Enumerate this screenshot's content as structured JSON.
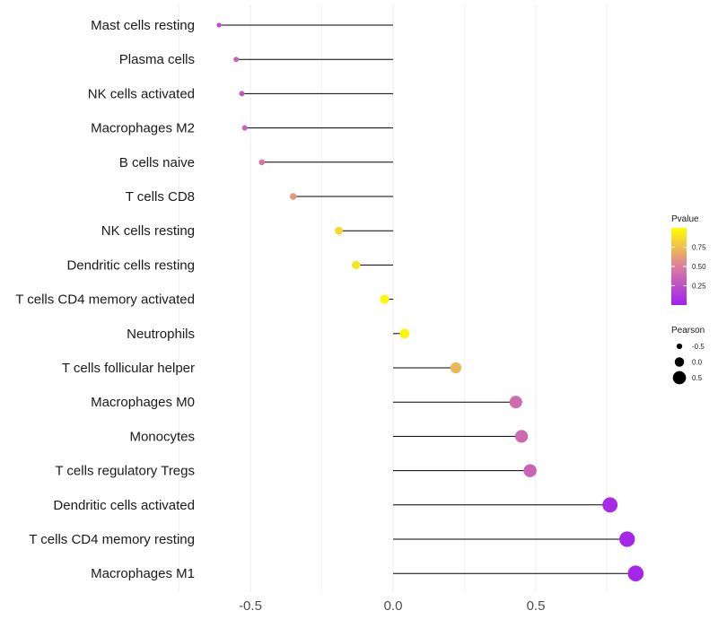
{
  "chart_data": {
    "type": "lollipop",
    "title": "",
    "xlabel": "",
    "ylabel": "",
    "xlim": [
      -0.93,
      1.0
    ],
    "xticks": [
      -0.5,
      0.0,
      0.5
    ],
    "xtick_labels": [
      "-0.5",
      "0.0",
      "0.5"
    ],
    "categories": [
      "Mast cells resting",
      "Plasma cells",
      "NK cells activated",
      "Macrophages M2",
      "B cells naive",
      "T cells CD8",
      "NK cells resting",
      "Dendritic cells resting",
      "T cells CD4 memory activated",
      "Neutrophils",
      "T cells follicular helper",
      "Macrophages M0",
      "Monocytes",
      "T cells regulatory  Tregs ",
      "Dendritic cells activated",
      "T cells CD4 memory resting",
      "Macrophages M1"
    ],
    "pearson": [
      -0.61,
      -0.55,
      -0.53,
      -0.52,
      -0.46,
      -0.35,
      -0.19,
      -0.13,
      -0.03,
      0.04,
      0.22,
      0.43,
      0.45,
      0.48,
      0.76,
      0.82,
      0.85
    ],
    "pvalue": [
      0.25,
      0.35,
      0.3,
      0.35,
      0.45,
      0.6,
      0.85,
      0.9,
      0.97,
      0.97,
      0.72,
      0.4,
      0.38,
      0.35,
      0.05,
      0.04,
      0.03
    ],
    "color_legend": {
      "title": "Pvalue",
      "ticks": [
        0.75,
        0.5,
        0.25
      ],
      "tick_labels": [
        "0.75",
        "0.50",
        "0.25"
      ],
      "range": [
        0.0,
        1.0
      ],
      "low_color": "#a020f0",
      "mid_color": "#db7f9d",
      "high_color": "#ffff00"
    },
    "size_legend": {
      "title": "Pearson",
      "values": [
        -0.5,
        0.0,
        0.5
      ],
      "labels": [
        "-0.5",
        "0.0",
        "0.5"
      ]
    },
    "colors": {
      "grid": "#ececec",
      "stem": "#000000"
    }
  }
}
